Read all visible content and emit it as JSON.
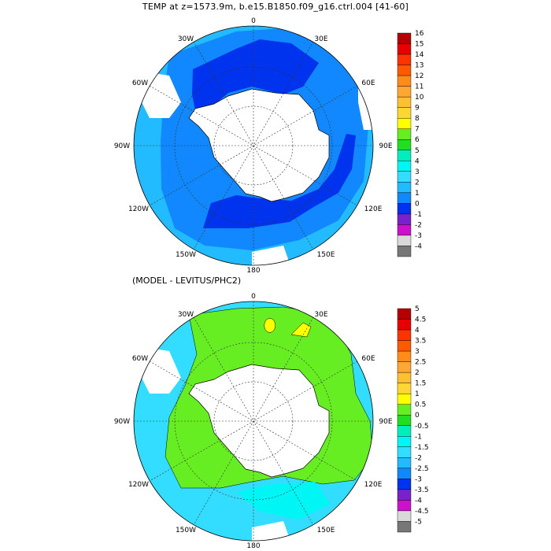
{
  "title": "TEMP at z=1573.9m, b.e15.B1850.f09_g16.ctrl.004 [41-60]",
  "subtitle": "(MODEL - LEVITUS/PHC2)",
  "longitude_labels": {
    "top": "0",
    "top_right": "30E",
    "right_upper": "60E",
    "right": "90E",
    "right_lower": "120E",
    "bottom_right": "150E",
    "bottom": "180",
    "bottom_left": "150W",
    "left_lower": "120W",
    "left": "90W",
    "left_upper": "60W",
    "top_left": "30W"
  },
  "colorbar_top": {
    "levels": [
      "16",
      "15",
      "14",
      "13",
      "12",
      "11",
      "10",
      "9",
      "8",
      "7",
      "6",
      "5",
      "4",
      "3",
      "2",
      "1",
      "0",
      "-1",
      "-2",
      "-3",
      "-4"
    ],
    "colors": [
      "#b40000",
      "#e60000",
      "#ff3300",
      "#ff5a00",
      "#ff8c1a",
      "#ffa633",
      "#ffbf33",
      "#ffd633",
      "#ffff00",
      "#66ee22",
      "#22dd22",
      "#00eebb",
      "#00f5f5",
      "#33ddff",
      "#22bbff",
      "#1188ff",
      "#0033ee",
      "#7722cc",
      "#cc11cc",
      "#d9d9d9",
      "#777777"
    ]
  },
  "colorbar_bottom": {
    "levels": [
      "5",
      "4.5",
      "4",
      "3.5",
      "3",
      "2.5",
      "2",
      "1.5",
      "1",
      "0.5",
      "0",
      "-0.5",
      "-1",
      "-1.5",
      "-2",
      "-2.5",
      "-3",
      "-3.5",
      "-4",
      "-4.5",
      "-5"
    ],
    "colors": [
      "#b40000",
      "#e60000",
      "#ff3300",
      "#ff5a00",
      "#ff8c1a",
      "#ffa633",
      "#ffbf33",
      "#ffd633",
      "#ffff00",
      "#66ee22",
      "#22dd22",
      "#00eebb",
      "#00f5f5",
      "#33ddff",
      "#22bbff",
      "#1188ff",
      "#0033ee",
      "#7722cc",
      "#cc11cc",
      "#d9d9d9",
      "#777777"
    ]
  },
  "map_colors": {
    "outer_band": "#22bbff",
    "mid_band": "#1188ff",
    "inner_band": "#0033ee",
    "land": "#ffffff",
    "diff_background": "#33ddff",
    "diff_green": "#66ee22",
    "diff_yellow": "#ffff00",
    "diff_cyan": "#00f5f5"
  }
}
